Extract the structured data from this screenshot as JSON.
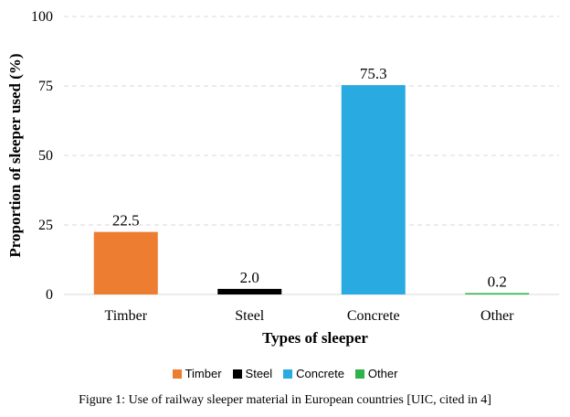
{
  "chart_data": {
    "type": "bar",
    "categories": [
      "Timber",
      "Steel",
      "Concrete",
      "Other"
    ],
    "values": [
      22.5,
      2.0,
      75.3,
      0.2
    ],
    "value_labels": [
      "22.5",
      "2.0",
      "75.3",
      "0.2"
    ],
    "colors": [
      "#ED7D31",
      "#000000",
      "#29ABE2",
      "#2DB34A"
    ],
    "ylim": [
      0,
      100
    ],
    "yticks": [
      0,
      25,
      50,
      75,
      100
    ],
    "xlabel": "Types of sleeper",
    "ylabel": "Proportion of sleeper used (%)",
    "grid": "horizontal dashed",
    "legend_position": "bottom",
    "legend": [
      "Timber",
      "Steel",
      "Concrete",
      "Other"
    ]
  },
  "caption": "Figure 1: Use of railway sleeper material in European countries [UIC, cited in 4]"
}
